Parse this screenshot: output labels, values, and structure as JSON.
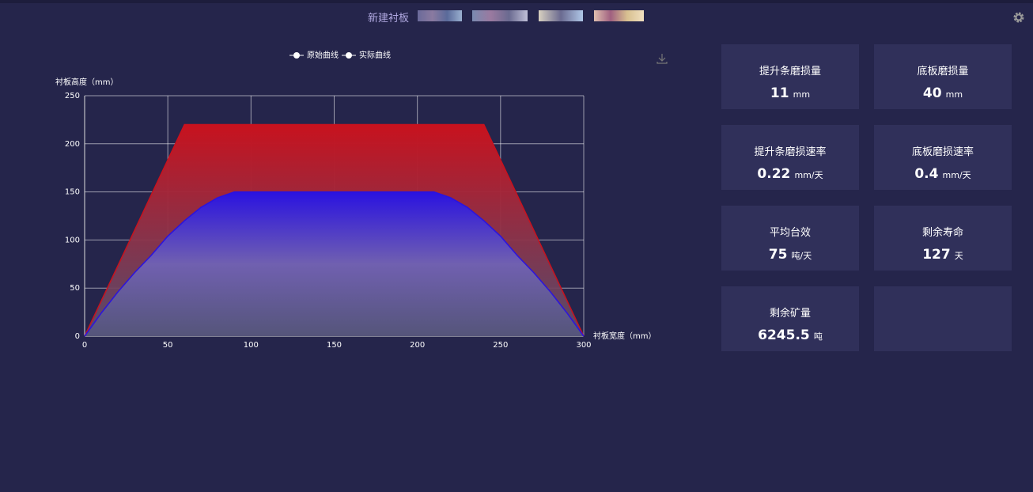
{
  "header": {
    "title": "新建衬板"
  },
  "chart_data": {
    "type": "line",
    "legend": [
      "原始曲线",
      "实际曲线"
    ],
    "ylabel": "衬板高度（mm）",
    "xlabel": "衬板宽度（mm）",
    "x": [
      0,
      10,
      20,
      30,
      40,
      50,
      60,
      70,
      80,
      90,
      100,
      110,
      120,
      130,
      140,
      150,
      160,
      170,
      180,
      190,
      200,
      210,
      220,
      230,
      240,
      250,
      260,
      270,
      280,
      290,
      300
    ],
    "series": [
      {
        "name": "原始曲线",
        "color": "#c8121e",
        "values": [
          0,
          36.7,
          73.3,
          110,
          146.7,
          183.3,
          220,
          220,
          220,
          220,
          220,
          220,
          220,
          220,
          220,
          220,
          220,
          220,
          220,
          220,
          220,
          220,
          220,
          220,
          220,
          183.3,
          146.7,
          110,
          73.3,
          36.7,
          0
        ]
      },
      {
        "name": "实际曲线",
        "color": "#2a12e0",
        "values": [
          0,
          24,
          46,
          66,
          84,
          104,
          120,
          134,
          144,
          150,
          150,
          150,
          150,
          150,
          150,
          150,
          150,
          150,
          150,
          150,
          150,
          150,
          144,
          134,
          120,
          104,
          84,
          66,
          46,
          24,
          0
        ]
      }
    ],
    "xlim": [
      0,
      300
    ],
    "xticks": [
      0,
      50,
      100,
      150,
      200,
      250,
      300
    ],
    "ylim": [
      0,
      250
    ],
    "yticks": [
      0,
      50,
      100,
      150,
      200,
      250
    ],
    "grid": true
  },
  "cards": [
    {
      "title": "提升条磨损量",
      "value": 11,
      "unit": "mm"
    },
    {
      "title": "底板磨损量",
      "value": 40,
      "unit": "mm"
    },
    {
      "title": "提升条磨损速率",
      "value": 0.22,
      "unit": "mm/天"
    },
    {
      "title": "底板磨损速率",
      "value": 0.4,
      "unit": "mm/天"
    },
    {
      "title": "平均台效",
      "value": 75,
      "unit": "吨/天"
    },
    {
      "title": "剩余寿命",
      "value": 127,
      "unit": "天"
    },
    {
      "title": "剩余矿量",
      "value": 6245.5,
      "unit": "吨"
    }
  ]
}
